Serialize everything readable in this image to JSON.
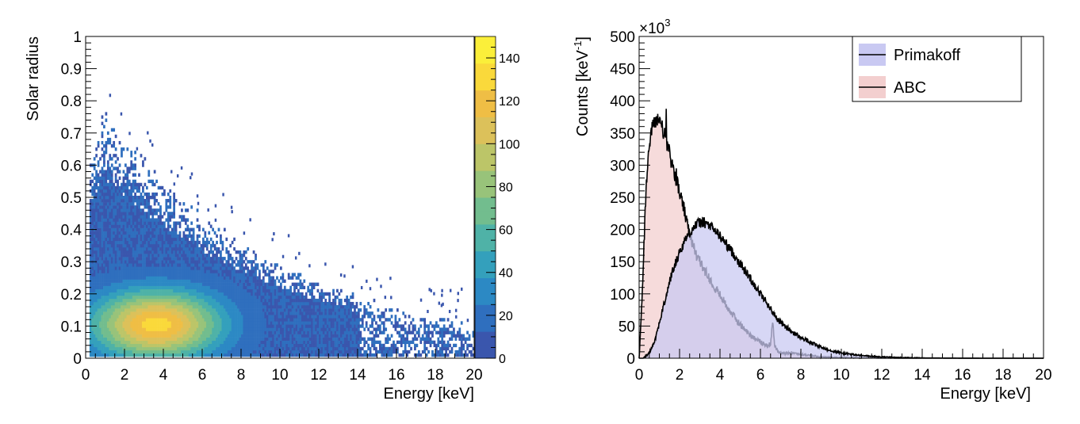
{
  "chart_data": [
    {
      "type": "heatmap",
      "xlabel": "Energy [keV]",
      "ylabel": "Solar radius",
      "xlim": [
        0,
        20
      ],
      "ylim": [
        0,
        1
      ],
      "x_ticks": [
        "0",
        "2",
        "4",
        "6",
        "8",
        "10",
        "12",
        "14",
        "16",
        "18",
        "20"
      ],
      "y_ticks": [
        "0",
        "0.1",
        "0.2",
        "0.3",
        "0.4",
        "0.5",
        "0.6",
        "0.7",
        "0.8",
        "0.9",
        "1"
      ],
      "colorbar": {
        "range": [
          0,
          150
        ],
        "ticks": [
          "0",
          "20",
          "40",
          "60",
          "80",
          "100",
          "120",
          "140"
        ],
        "colors": [
          "#3a56ad",
          "#2f6fbe",
          "#2c89c4",
          "#34a0bc",
          "#4fb2a7",
          "#72bd8e",
          "#98c37a",
          "#bcc568",
          "#dcc15a",
          "#efbe45",
          "#fad93b",
          "#fbef3a"
        ]
      },
      "peak": {
        "energy": 3.6,
        "radius": 0.1
      }
    },
    {
      "type": "area",
      "xlabel": "Energy [keV]",
      "ylabel": "Counts [keV",
      "ylabel_sup": "-1",
      "ylabel_end": "]",
      "y_multiplier": "×10",
      "y_multiplier_sup": "3",
      "xlim": [
        0,
        20
      ],
      "ylim": [
        0,
        500
      ],
      "x_ticks": [
        "0",
        "2",
        "4",
        "6",
        "8",
        "10",
        "12",
        "14",
        "16",
        "18",
        "20"
      ],
      "y_ticks": [
        "0",
        "50",
        "100",
        "150",
        "200",
        "250",
        "300",
        "350",
        "400",
        "450",
        "500"
      ],
      "legend_position": "top-right",
      "series": [
        {
          "name": "Primakoff",
          "color": "#c9c9f2",
          "x": [
            0.2,
            0.5,
            0.8,
            1.0,
            1.3,
            1.6,
            2.0,
            2.4,
            2.8,
            3.1,
            3.4,
            3.8,
            4.2,
            4.6,
            5.0,
            5.5,
            6.0,
            6.4,
            6.8,
            7.2,
            7.6,
            8.0,
            8.5,
            9.0,
            9.5,
            10.0,
            10.5,
            11.0,
            11.5,
            12.0,
            13.0,
            14.0,
            15.0,
            16.0,
            17.0,
            18.0,
            19.0,
            20.0
          ],
          "y": [
            0,
            8,
            30,
            55,
            92,
            130,
            165,
            192,
            207,
            212,
            208,
            197,
            182,
            165,
            147,
            124,
            100,
            82,
            62,
            50,
            40,
            32,
            24,
            17,
            12,
            8,
            6,
            4,
            3,
            2,
            1,
            0.5,
            0.3,
            0.1,
            0,
            0,
            0,
            0
          ]
        },
        {
          "name": "ABC",
          "color": "#f3cfcf",
          "x": [
            0.0,
            0.1,
            0.2,
            0.3,
            0.4,
            0.5,
            0.6,
            0.7,
            0.8,
            0.9,
            1.0,
            1.1,
            1.2,
            1.4,
            1.6,
            1.8,
            2.0,
            2.2,
            2.4,
            2.6,
            2.8,
            3.0,
            3.5,
            4.0,
            4.5,
            5.0,
            5.5,
            6.0,
            6.3,
            6.5,
            6.6,
            6.7,
            6.9,
            7.2,
            7.6,
            8.0,
            8.5,
            9.0,
            10.0,
            11.0,
            12.0,
            14.0,
            16.0,
            20.0
          ],
          "y": [
            0,
            60,
            140,
            230,
            295,
            330,
            350,
            362,
            370,
            372,
            370,
            365,
            352,
            330,
            305,
            282,
            258,
            234,
            205,
            180,
            163,
            150,
            123,
            98,
            73,
            52,
            36,
            25,
            20,
            22,
            60,
            20,
            8,
            7,
            9,
            6,
            4,
            2,
            1,
            0.5,
            0.2,
            0,
            0,
            0
          ]
        }
      ]
    }
  ]
}
